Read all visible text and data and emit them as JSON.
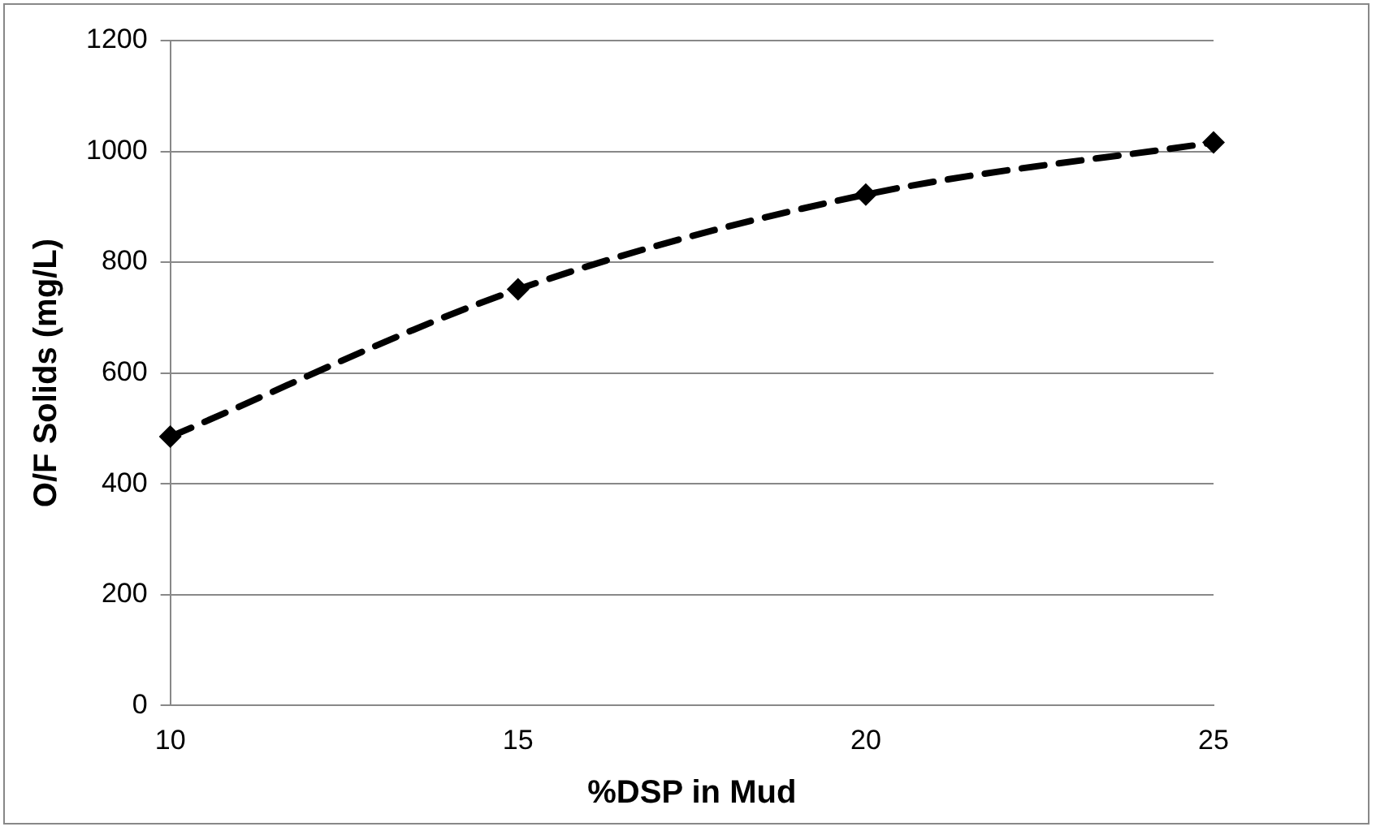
{
  "chart_data": {
    "type": "line",
    "xlabel": "%DSP in Mud",
    "ylabel": "O/F Solids (mg/L)",
    "categories": [
      "10",
      "15",
      "20",
      "25"
    ],
    "series": [
      {
        "color": "#000000",
        "values": [
          485,
          751,
          922,
          1016
        ]
      }
    ],
    "ylim": [
      0,
      1200
    ],
    "yticks": [
      0,
      200,
      400,
      600,
      800,
      1000,
      1200
    ],
    "grid": "y",
    "legend": false,
    "marker": "diamond",
    "line_style": "dashed"
  }
}
